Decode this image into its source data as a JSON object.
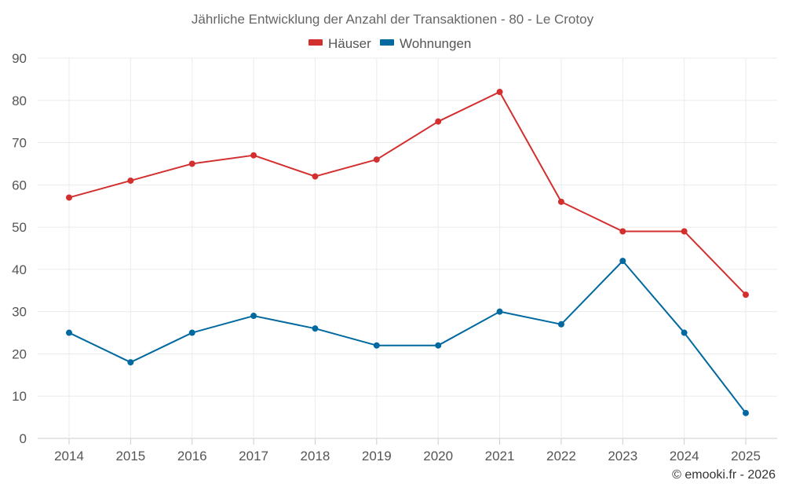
{
  "chart_data": {
    "type": "line",
    "title": "Jährliche Entwicklung der Anzahl der Transaktionen - 80 - Le Crotoy",
    "categories": [
      "2014",
      "2015",
      "2016",
      "2017",
      "2018",
      "2019",
      "2020",
      "2021",
      "2022",
      "2023",
      "2024",
      "2025"
    ],
    "series": [
      {
        "name": "Häuser",
        "color": "#d32f2f",
        "values": [
          57,
          61,
          65,
          67,
          62,
          66,
          75,
          82,
          56,
          49,
          49,
          34
        ]
      },
      {
        "name": "Wohnungen",
        "color": "#01699f",
        "values": [
          25,
          18,
          25,
          29,
          26,
          22,
          22,
          30,
          27,
          42,
          25,
          6
        ]
      }
    ],
    "ylim": [
      0,
      90
    ],
    "yticks": [
      0,
      10,
      20,
      30,
      40,
      50,
      60,
      70,
      80,
      90
    ],
    "grid": true,
    "legend_position": "top-center",
    "xlabel": "",
    "ylabel": ""
  },
  "credit": "© emooki.fr - 2026"
}
